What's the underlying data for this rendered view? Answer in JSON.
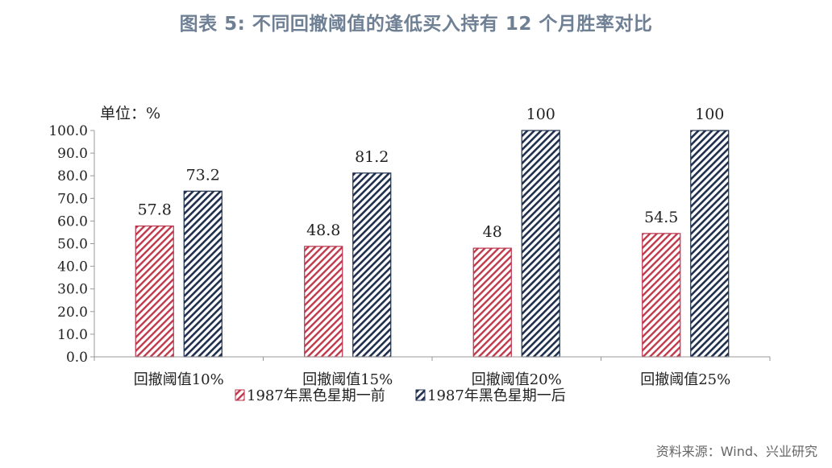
{
  "header": {
    "title": "图表 5: 不同回撤阈值的逢低买入持有 12 个月胜率对比"
  },
  "footer": {
    "source": "资料来源：Wind、兴业研究"
  },
  "chart_data": {
    "type": "bar",
    "unit_label": "单位：%",
    "categories": [
      "回撤阈值10%",
      "回撤阈值15%",
      "回撤阈值20%",
      "回撤阈值25%"
    ],
    "series": [
      {
        "name": "1987年黑色星期一前",
        "values": [
          57.8,
          48.8,
          48,
          54.5
        ],
        "labels": [
          "57.8",
          "48.8",
          "48",
          "54.5"
        ],
        "color": "#c0394b",
        "pattern": "diagonal-hatch"
      },
      {
        "name": "1987年黑色星期一后",
        "values": [
          73.2,
          81.2,
          100,
          100
        ],
        "labels": [
          "73.2",
          "81.2",
          "100",
          "100"
        ],
        "color": "#1f2f4d",
        "pattern": "diagonal-hatch"
      }
    ],
    "ylim": [
      0,
      100
    ],
    "yticks": [
      "0.0",
      "10.0",
      "20.0",
      "30.0",
      "40.0",
      "50.0",
      "60.0",
      "70.0",
      "80.0",
      "90.0",
      "100.0"
    ],
    "grid": false,
    "legend_position": "bottom"
  }
}
